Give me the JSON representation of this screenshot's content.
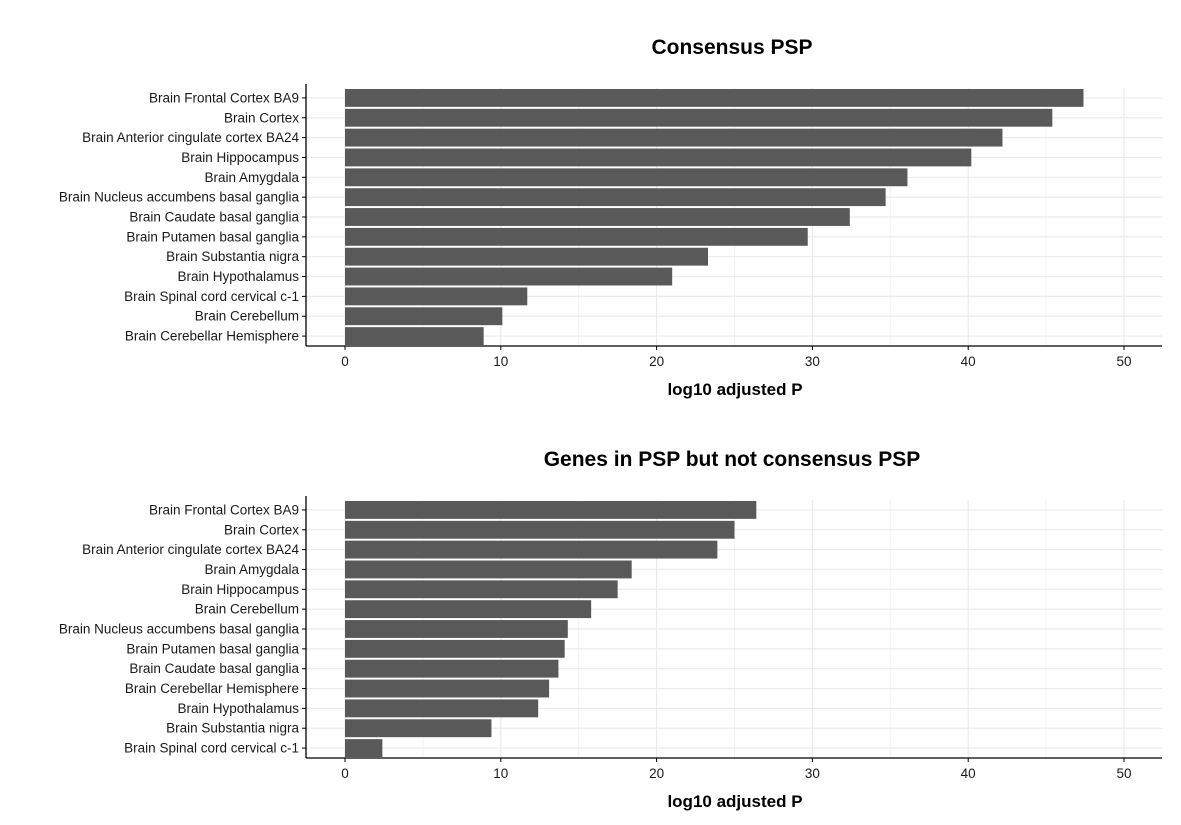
{
  "colors": {
    "bar": "#595959",
    "grid_major": "#ebebeb",
    "grid_minor": "#f2f2f2",
    "axis": "#000000",
    "background": "#ffffff"
  },
  "chart_data": [
    {
      "type": "bar",
      "orientation": "horizontal",
      "title": "Consensus PSP",
      "xlabel": "log10 adjusted P",
      "ylabel": "",
      "xlim": [
        0,
        52.5
      ],
      "xticks": [
        0,
        10,
        20,
        30,
        40,
        50
      ],
      "grid": true,
      "categories": [
        "Brain Frontal Cortex BA9",
        "Brain Cortex",
        "Brain Anterior cingulate cortex BA24",
        "Brain Hippocampus",
        "Brain Amygdala",
        "Brain Nucleus accumbens basal ganglia",
        "Brain Caudate basal ganglia",
        "Brain Putamen basal ganglia",
        "Brain Substantia nigra",
        "Brain Hypothalamus",
        "Brain Spinal cord cervical c-1",
        "Brain Cerebellum",
        "Brain Cerebellar Hemisphere"
      ],
      "values": [
        47.4,
        45.4,
        42.2,
        40.2,
        36.1,
        34.7,
        32.4,
        29.7,
        23.3,
        21.0,
        11.7,
        10.1,
        8.9
      ]
    },
    {
      "type": "bar",
      "orientation": "horizontal",
      "title": "Genes in PSP but not consensus PSP",
      "xlabel": "log10 adjusted P",
      "ylabel": "",
      "xlim": [
        0,
        52.5
      ],
      "xticks": [
        0,
        10,
        20,
        30,
        40,
        50
      ],
      "grid": true,
      "categories": [
        "Brain Frontal Cortex BA9",
        "Brain Cortex",
        "Brain Anterior cingulate cortex BA24",
        "Brain Amygdala",
        "Brain Hippocampus",
        "Brain Cerebellum",
        "Brain Nucleus accumbens basal ganglia",
        "Brain Putamen basal ganglia",
        "Brain Caudate basal ganglia",
        "Brain Cerebellar Hemisphere",
        "Brain Hypothalamus",
        "Brain Substantia nigra",
        "Brain Spinal cord cervical c-1"
      ],
      "values": [
        26.4,
        25.0,
        23.9,
        18.4,
        17.5,
        15.8,
        14.3,
        14.1,
        13.7,
        13.1,
        12.4,
        9.4,
        2.4
      ]
    }
  ]
}
